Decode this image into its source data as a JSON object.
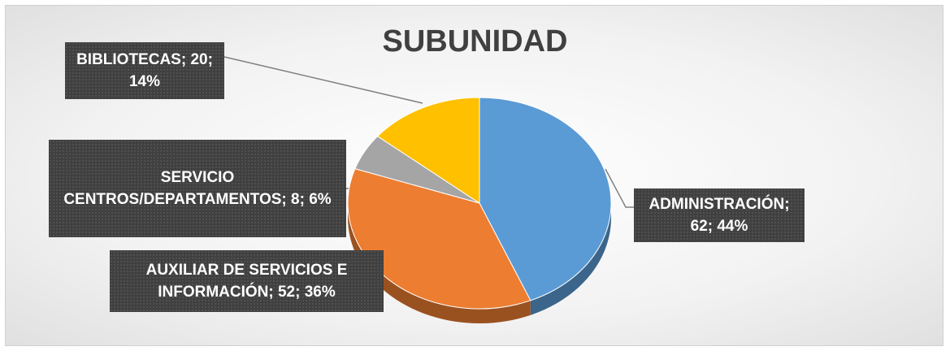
{
  "chart_data": {
    "type": "pie",
    "title": "SUBUNIDAD",
    "values": [
      62,
      52,
      8,
      20
    ],
    "value_labels": [
      "ADMINISTRACIÓN; 62; 44%",
      "AUXILIAR DE SERVICIOS E INFORMACIÓN; 52; 36%",
      "SERVICIO CENTROS/DEPARTAMENTOS; 8; 6%",
      "BIBLIOTECAS; 20; 14%"
    ],
    "colors": [
      "#5b9bd5",
      "#ed7d31",
      "#a5a5a5",
      "#ffc000"
    ]
  }
}
